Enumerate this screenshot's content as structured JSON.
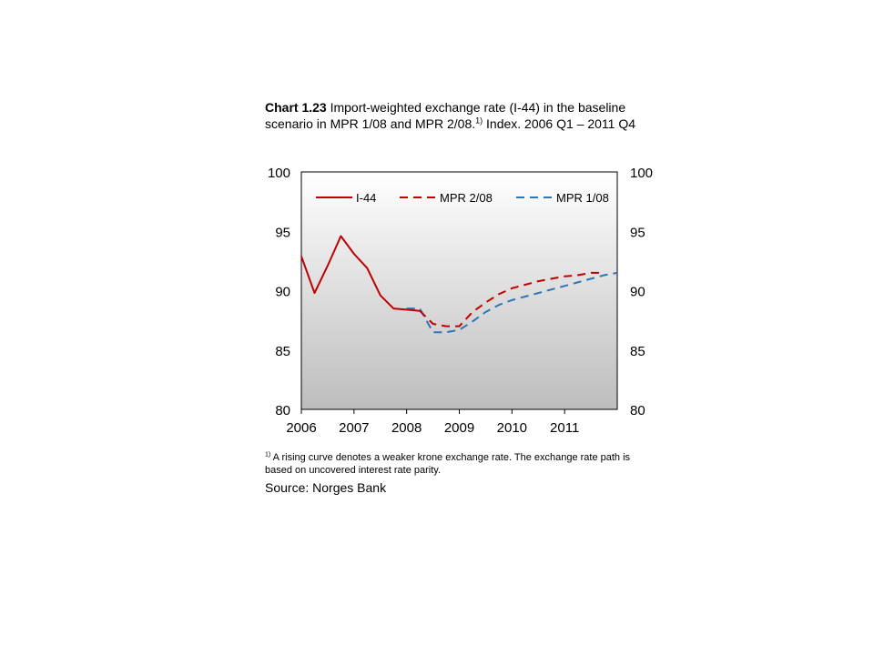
{
  "title": {
    "prefix": "Chart 1.23",
    "text": " Import-weighted exchange rate (I-44)  in the baseline scenario in MPR 1/08 and MPR 2/08.",
    "sup": "1)",
    "text2": " Index. 2006 Q1 – 2011 Q4"
  },
  "footnote": {
    "sup": "1)",
    "text": " A rising curve denotes a weaker  krone exchange rate. The exchange rate path is based on uncovered interest rate parity."
  },
  "source": "Source: Norges Bank",
  "colors": {
    "i44": "#c00000",
    "mpr208": "#c00000",
    "mpr108": "#2e75b6"
  },
  "chart_data": {
    "type": "line",
    "ylim": [
      80,
      100
    ],
    "yticks": [
      "100",
      "95",
      "90",
      "85",
      "80"
    ],
    "xlim": [
      2006.0,
      2012.0
    ],
    "xticks": [
      "2006",
      "2007",
      "2008",
      "2009",
      "2010",
      "2011"
    ],
    "grid": false,
    "legend": "top",
    "series": [
      {
        "name": "I-44",
        "style": "solid",
        "x": [
          2006.0,
          2006.25,
          2006.5,
          2006.75,
          2007.0,
          2007.25,
          2007.5,
          2007.75,
          2008.0,
          2008.25
        ],
        "y": [
          92.9,
          89.8,
          92.1,
          94.6,
          93.1,
          91.9,
          89.6,
          88.5,
          88.4,
          88.3
        ]
      },
      {
        "name": "MPR 2/08",
        "style": "dashed",
        "x": [
          2008.25,
          2008.5,
          2008.75,
          2009.0,
          2009.25,
          2009.5,
          2009.75,
          2010.0,
          2010.25,
          2010.5,
          2010.75,
          2011.0,
          2011.25,
          2011.5,
          2011.75
        ],
        "y": [
          88.3,
          87.2,
          87.0,
          87.0,
          88.2,
          89.0,
          89.7,
          90.2,
          90.5,
          90.8,
          91.0,
          91.2,
          91.3,
          91.5,
          91.5
        ]
      },
      {
        "name": "MPR 1/08",
        "style": "dashed",
        "x": [
          2008.0,
          2008.25,
          2008.5,
          2008.75,
          2009.0,
          2009.25,
          2009.5,
          2009.75,
          2010.0,
          2010.25,
          2010.5,
          2010.75,
          2011.0,
          2011.25,
          2011.5,
          2011.75,
          2012.0
        ],
        "y": [
          88.5,
          88.5,
          86.5,
          86.5,
          86.7,
          87.4,
          88.2,
          88.8,
          89.2,
          89.5,
          89.8,
          90.1,
          90.4,
          90.7,
          91.0,
          91.3,
          91.5
        ]
      }
    ]
  }
}
